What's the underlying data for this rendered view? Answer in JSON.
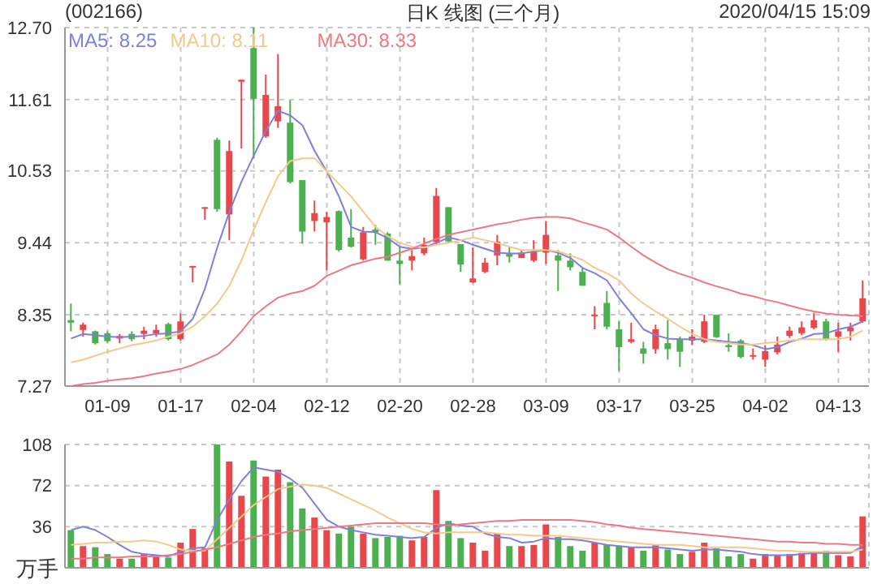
{
  "chart_data": [
    {
      "type": "candlestick",
      "title": "(002166)",
      "subtitle": "日K 线图 (三个月)",
      "annotations": [
        "2020/04/15 15:09"
      ],
      "categories": [
        null,
        null,
        null,
        "01-09",
        null,
        null,
        null,
        null,
        null,
        "01-17",
        null,
        null,
        null,
        null,
        null,
        "02-04",
        null,
        null,
        null,
        null,
        null,
        "02-12",
        null,
        null,
        null,
        null,
        null,
        "02-20",
        null,
        null,
        null,
        null,
        null,
        "02-28",
        null,
        null,
        null,
        null,
        null,
        "03-09",
        null,
        null,
        null,
        null,
        null,
        "03-17",
        null,
        null,
        null,
        null,
        null,
        "03-25",
        null,
        null,
        null,
        null,
        null,
        "04-02",
        null,
        null,
        null,
        null,
        null,
        "04-13",
        null,
        null
      ],
      "ohlc": [
        [
          8.27,
          8.52,
          8.1,
          8.23
        ],
        [
          8.12,
          8.23,
          8.02,
          8.2
        ],
        [
          8.1,
          8.11,
          7.9,
          7.92
        ],
        [
          8.07,
          8.1,
          7.93,
          7.95
        ],
        [
          7.99,
          8.06,
          7.92,
          8.03
        ],
        [
          8.06,
          8.1,
          7.95,
          7.98
        ],
        [
          8.06,
          8.17,
          7.98,
          8.11
        ],
        [
          8.07,
          8.2,
          8.02,
          8.12
        ],
        [
          8.21,
          8.23,
          7.96,
          7.98
        ],
        [
          7.98,
          8.37,
          7.96,
          8.25
        ],
        [
          9.07,
          9.09,
          8.84,
          9.09
        ],
        [
          9.97,
          9.98,
          9.79,
          9.98
        ],
        [
          11.0,
          11.03,
          9.91,
          9.95
        ],
        [
          9.87,
          10.99,
          9.48,
          10.83
        ],
        [
          11.88,
          11.91,
          10.87,
          11.91
        ],
        [
          12.39,
          12.7,
          10.72,
          11.62
        ],
        [
          11.05,
          11.99,
          11.03,
          11.68
        ],
        [
          11.28,
          12.3,
          11.18,
          11.51
        ],
        [
          11.26,
          11.6,
          10.34,
          10.36
        ],
        [
          10.39,
          10.39,
          9.43,
          9.61
        ],
        [
          9.77,
          10.08,
          9.61,
          9.89
        ],
        [
          9.75,
          9.91,
          9.02,
          9.83
        ],
        [
          9.92,
          9.93,
          9.31,
          9.33
        ],
        [
          9.52,
          9.95,
          9.37,
          9.38
        ],
        [
          9.19,
          9.68,
          9.17,
          9.6
        ],
        [
          9.64,
          9.71,
          9.41,
          9.6
        ],
        [
          9.58,
          9.6,
          9.17,
          9.17
        ],
        [
          9.17,
          9.38,
          8.81,
          9.12
        ],
        [
          9.17,
          9.33,
          9.02,
          9.24
        ],
        [
          9.28,
          9.52,
          9.25,
          9.41
        ],
        [
          9.45,
          10.27,
          9.41,
          10.15
        ],
        [
          9.98,
          9.98,
          9.45,
          9.46
        ],
        [
          9.42,
          9.42,
          9.0,
          9.11
        ],
        [
          8.84,
          9.37,
          8.83,
          8.9
        ],
        [
          9.0,
          9.21,
          8.98,
          9.14
        ],
        [
          9.25,
          9.56,
          9.1,
          9.46
        ],
        [
          9.28,
          9.38,
          9.14,
          9.23
        ],
        [
          9.21,
          9.33,
          9.21,
          9.29
        ],
        [
          9.17,
          9.48,
          9.15,
          9.31
        ],
        [
          9.29,
          9.77,
          9.12,
          9.56
        ],
        [
          9.25,
          9.33,
          8.71,
          9.17
        ],
        [
          9.17,
          9.28,
          9.02,
          9.07
        ],
        [
          9.0,
          9.06,
          8.79,
          8.79
        ],
        [
          8.34,
          8.48,
          8.13,
          8.35
        ],
        [
          8.53,
          8.71,
          8.13,
          8.17
        ],
        [
          8.13,
          8.25,
          7.5,
          7.86
        ],
        [
          7.94,
          8.23,
          7.92,
          7.98
        ],
        [
          7.84,
          7.94,
          7.61,
          7.76
        ],
        [
          7.83,
          8.2,
          7.76,
          8.13
        ],
        [
          7.92,
          8.27,
          7.67,
          7.83
        ],
        [
          7.98,
          8.02,
          7.56,
          7.79
        ],
        [
          7.96,
          8.13,
          7.89,
          8.02
        ],
        [
          7.94,
          8.35,
          7.92,
          8.25
        ],
        [
          8.35,
          8.35,
          8.0,
          8.01
        ],
        [
          7.89,
          8.07,
          7.79,
          7.86
        ],
        [
          7.96,
          7.98,
          7.69,
          7.71
        ],
        [
          7.72,
          7.84,
          7.67,
          7.74
        ],
        [
          7.67,
          7.89,
          7.56,
          7.8
        ],
        [
          7.78,
          8.02,
          7.75,
          7.9
        ],
        [
          8.03,
          8.17,
          8.0,
          8.11
        ],
        [
          8.07,
          8.25,
          8.04,
          8.16
        ],
        [
          8.15,
          8.38,
          8.13,
          8.27
        ],
        [
          8.25,
          8.29,
          7.96,
          7.98
        ],
        [
          8.02,
          8.23,
          7.79,
          8.1
        ],
        [
          8.1,
          8.23,
          7.96,
          8.16
        ],
        [
          8.25,
          8.87,
          8.23,
          8.6
        ]
      ],
      "colors": [
        "#4cb050",
        "#e8474c",
        "#4cb050",
        "#4cb050",
        "#e8474c",
        "#4cb050",
        "#e8474c",
        "#e8474c",
        "#4cb050",
        "#e8474c",
        "#e8474c",
        "#e8474c",
        "#4cb050",
        "#e8474c",
        "#e8474c",
        "#4cb050",
        "#e8474c",
        "#e8474c",
        "#4cb050",
        "#4cb050",
        "#e8474c",
        "#e8474c",
        "#4cb050",
        "#4cb050",
        "#e8474c",
        "#4cb050",
        "#4cb050",
        "#4cb050",
        "#e8474c",
        "#e8474c",
        "#e8474c",
        "#4cb050",
        "#4cb050",
        "#e8474c",
        "#e8474c",
        "#e8474c",
        "#4cb050",
        "#e8474c",
        "#e8474c",
        "#e8474c",
        "#4cb050",
        "#4cb050",
        "#4cb050",
        "#e8474c",
        "#4cb050",
        "#4cb050",
        "#e8474c",
        "#4cb050",
        "#e8474c",
        "#4cb050",
        "#4cb050",
        "#e8474c",
        "#e8474c",
        "#4cb050",
        "#4cb050",
        "#4cb050",
        "#e8474c",
        "#e8474c",
        "#e8474c",
        "#e8474c",
        "#e8474c",
        "#e8474c",
        "#4cb050",
        "#e8474c",
        "#e8474c",
        "#e8474c"
      ],
      "series": [
        {
          "type": "line",
          "name": "MA5: 8.25",
          "color": "#7f7fdc",
          "values": [
            7.99,
            8.06,
            8.04,
            8.02,
            8.01,
            8.02,
            8.03,
            8.06,
            8.07,
            8.1,
            8.29,
            8.75,
            9.37,
            9.91,
            10.37,
            10.76,
            11.14,
            11.44,
            11.37,
            11.22,
            10.83,
            10.52,
            10.14,
            9.68,
            9.61,
            9.6,
            9.51,
            9.38,
            9.35,
            9.37,
            9.44,
            9.52,
            9.48,
            9.41,
            9.35,
            9.29,
            9.28,
            9.28,
            9.31,
            9.33,
            9.29,
            9.21,
            9.06,
            8.98,
            8.87,
            8.6,
            8.37,
            8.13,
            8.04,
            7.99,
            7.98,
            7.98,
            7.98,
            7.96,
            7.94,
            7.92,
            7.89,
            7.83,
            7.86,
            7.94,
            7.99,
            8.06,
            8.07,
            8.13,
            8.17,
            8.25
          ]
        },
        {
          "type": "line",
          "name": "MA10: 8.11",
          "color": "#f5c98c",
          "values": [
            7.63,
            7.67,
            7.73,
            7.79,
            7.84,
            7.89,
            7.92,
            7.96,
            8.02,
            8.07,
            8.17,
            8.33,
            8.52,
            8.79,
            9.18,
            9.64,
            10.06,
            10.45,
            10.68,
            10.72,
            10.72,
            10.52,
            10.33,
            10.14,
            9.91,
            9.68,
            9.54,
            9.44,
            9.38,
            9.37,
            9.41,
            9.44,
            9.48,
            9.52,
            9.48,
            9.44,
            9.38,
            9.33,
            9.33,
            9.33,
            9.31,
            9.25,
            9.18,
            9.06,
            8.98,
            8.87,
            8.67,
            8.52,
            8.4,
            8.29,
            8.17,
            8.06,
            7.98,
            7.94,
            7.92,
            7.9,
            7.9,
            7.92,
            7.94,
            7.96,
            7.98,
            7.98,
            7.98,
            7.98,
            8.02,
            8.11
          ]
        },
        {
          "type": "line",
          "name": "MA30: 8.33",
          "color": "#ec7a82",
          "values": [
            7.27,
            7.3,
            7.32,
            7.35,
            7.37,
            7.39,
            7.42,
            7.46,
            7.49,
            7.53,
            7.59,
            7.67,
            7.75,
            7.9,
            8.1,
            8.33,
            8.48,
            8.61,
            8.67,
            8.71,
            8.79,
            8.94,
            9.02,
            9.1,
            9.15,
            9.2,
            9.23,
            9.29,
            9.35,
            9.43,
            9.5,
            9.56,
            9.6,
            9.64,
            9.68,
            9.72,
            9.75,
            9.79,
            9.82,
            9.83,
            9.83,
            9.81,
            9.75,
            9.7,
            9.64,
            9.52,
            9.38,
            9.25,
            9.14,
            9.04,
            8.97,
            8.91,
            8.84,
            8.78,
            8.73,
            8.67,
            8.63,
            8.58,
            8.54,
            8.49,
            8.44,
            8.4,
            8.37,
            8.35,
            8.34,
            8.33
          ]
        }
      ],
      "ylim": [
        7.27,
        12.7
      ],
      "yticks": [
        7.27,
        8.35,
        9.44,
        10.53,
        11.61,
        {
          "value": 12.7,
          "label": "12.70"
        }
      ],
      "grid": true,
      "legend": "top left"
    },
    {
      "type": "bar",
      "ylabel": "万手",
      "categories": [
        null,
        null,
        null,
        null,
        null,
        null,
        null,
        null,
        null,
        null,
        null,
        null,
        null,
        null,
        null,
        null,
        null,
        null,
        null,
        null,
        null,
        null,
        null,
        null,
        null,
        null,
        null,
        null,
        null,
        null,
        null,
        null,
        null,
        null,
        null,
        null,
        null,
        null,
        null,
        null,
        null,
        null,
        null,
        null,
        null,
        null,
        null,
        null,
        null,
        null,
        null,
        null,
        null,
        null,
        null,
        null,
        null,
        null,
        null,
        null,
        null,
        null,
        null,
        null,
        null,
        null
      ],
      "series": [
        {
          "type": "bar",
          "values": [
            33,
            19,
            18,
            12,
            8,
            8,
            12,
            10,
            9,
            22,
            34,
            17,
            108,
            93,
            63,
            94,
            80,
            86,
            75,
            52,
            44,
            33,
            30,
            36,
            30,
            26,
            27,
            28,
            24,
            27,
            68,
            41,
            26,
            22,
            15,
            30,
            19,
            19,
            20,
            38,
            27,
            19,
            15,
            22,
            20,
            19,
            18,
            15,
            20,
            16,
            12,
            14,
            22,
            17,
            10,
            12,
            8,
            12,
            11,
            12,
            13,
            14,
            15,
            11,
            10,
            45
          ],
          "colors": [
            "#4cb050",
            "#e8474c",
            "#4cb050",
            "#4cb050",
            "#e8474c",
            "#4cb050",
            "#e8474c",
            "#e8474c",
            "#4cb050",
            "#e8474c",
            "#e8474c",
            "#e8474c",
            "#4cb050",
            "#e8474c",
            "#e8474c",
            "#4cb050",
            "#e8474c",
            "#e8474c",
            "#4cb050",
            "#4cb050",
            "#e8474c",
            "#e8474c",
            "#4cb050",
            "#4cb050",
            "#e8474c",
            "#4cb050",
            "#4cb050",
            "#4cb050",
            "#e8474c",
            "#e8474c",
            "#e8474c",
            "#4cb050",
            "#4cb050",
            "#e8474c",
            "#e8474c",
            "#e8474c",
            "#4cb050",
            "#e8474c",
            "#e8474c",
            "#e8474c",
            "#4cb050",
            "#4cb050",
            "#4cb050",
            "#e8474c",
            "#4cb050",
            "#4cb050",
            "#e8474c",
            "#4cb050",
            "#e8474c",
            "#4cb050",
            "#4cb050",
            "#e8474c",
            "#e8474c",
            "#4cb050",
            "#4cb050",
            "#4cb050",
            "#e8474c",
            "#e8474c",
            "#e8474c",
            "#e8474c",
            "#e8474c",
            "#e8474c",
            "#4cb050",
            "#e8474c",
            "#e8474c",
            "#e8474c"
          ]
        },
        {
          "type": "line",
          "color": "#7f7fdc",
          "values": [
            33,
            36,
            33,
            27,
            20,
            14,
            12,
            11,
            10,
            14,
            17,
            18,
            42,
            60,
            76,
            88,
            86,
            84,
            78,
            70,
            56,
            42,
            36,
            33,
            31,
            29,
            28,
            27,
            26,
            27,
            35,
            39,
            37,
            36,
            30,
            27,
            26,
            22,
            23,
            26,
            25,
            25,
            24,
            22,
            20,
            19,
            18,
            18,
            18,
            17,
            16,
            15,
            16,
            16,
            15,
            14,
            12,
            11,
            11,
            11,
            12,
            13,
            13,
            13,
            13,
            19
          ]
        },
        {
          "type": "line",
          "color": "#f5c98c",
          "values": [
            20,
            21,
            22,
            22,
            23,
            23,
            24,
            23,
            20,
            16,
            15,
            15,
            25,
            35,
            45,
            55,
            62,
            69,
            71,
            73,
            72,
            70,
            65,
            60,
            55,
            50,
            44,
            39,
            34,
            31,
            30,
            31,
            31,
            31,
            31,
            30,
            29,
            29,
            28,
            28,
            28,
            27,
            26,
            25,
            24,
            23,
            22,
            21,
            20,
            20,
            20,
            19,
            18,
            18,
            18,
            18,
            17,
            16,
            15,
            15,
            14,
            14,
            14,
            14,
            14,
            16
          ]
        },
        {
          "type": "line",
          "color": "#ec7a82",
          "values": [
            8,
            8,
            9,
            9,
            9,
            10,
            10,
            10,
            11,
            12,
            14,
            16,
            18,
            21,
            24,
            27,
            29,
            30,
            32,
            33,
            34,
            35,
            36,
            37,
            38,
            39,
            39,
            39,
            39,
            39,
            38,
            37,
            38,
            39,
            40,
            41,
            41,
            42,
            42,
            42,
            42,
            42,
            41,
            40,
            38,
            37,
            35,
            34,
            33,
            32,
            31,
            30,
            29,
            28,
            27,
            26,
            25,
            24,
            23,
            23,
            22,
            22,
            21,
            21,
            20,
            20
          ]
        }
      ],
      "ylim": [
        0,
        108
      ],
      "yticks": [
        36,
        72,
        108
      ],
      "grid": true,
      "tick_labels": "y"
    }
  ]
}
